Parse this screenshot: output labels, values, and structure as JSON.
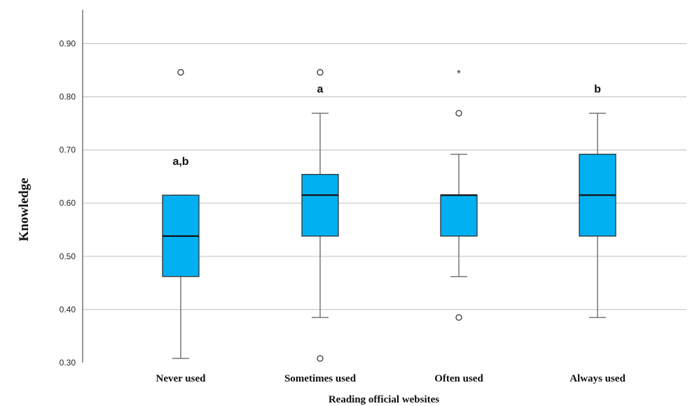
{
  "chart_data": {
    "type": "box",
    "xlabel": "Reading official websites",
    "ylabel": "Knowledge",
    "ylim": [
      0.3,
      0.92
    ],
    "yticks": [
      "0.30",
      "0.40",
      "0.50",
      "0.60",
      "0.70",
      "0.80",
      "0.90"
    ],
    "grid": true,
    "colors": {
      "box": "#00b0f0",
      "stroke": "#333333",
      "grid": "#c8c8c8",
      "whisker": "#777777"
    },
    "categories": [
      "Never used",
      "Sometimes used",
      "Often used",
      "Always used"
    ],
    "boxes": [
      {
        "category": "Never used",
        "whisker_low": 0.308,
        "q1": 0.462,
        "median": 0.538,
        "q3": 0.615,
        "whisker_high": 0.615,
        "outliers": [
          0.846
        ],
        "extremes": [],
        "annotation": "a,b",
        "annotation_y": 0.672
      },
      {
        "category": "Sometimes used",
        "whisker_low": 0.385,
        "q1": 0.538,
        "median": 0.615,
        "q3": 0.654,
        "whisker_high": 0.769,
        "outliers": [
          0.846,
          0.308
        ],
        "extremes": [],
        "annotation": "a",
        "annotation_y": 0.808
      },
      {
        "category": "Often used",
        "whisker_low": 0.462,
        "q1": 0.538,
        "median": 0.615,
        "q3": 0.615,
        "whisker_high": 0.692,
        "outliers": [
          0.769,
          0.385
        ],
        "extremes": [
          0.846
        ],
        "annotation": "",
        "annotation_y": null
      },
      {
        "category": "Always used",
        "whisker_low": 0.385,
        "q1": 0.538,
        "median": 0.615,
        "q3": 0.692,
        "whisker_high": 0.769,
        "outliers": [],
        "extremes": [],
        "annotation": "b",
        "annotation_y": 0.808
      }
    ]
  }
}
